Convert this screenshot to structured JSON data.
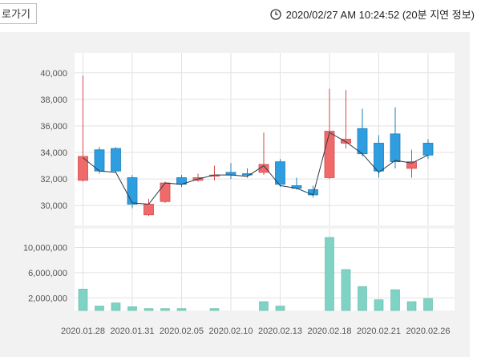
{
  "toolbar": {
    "back_label": "로가기"
  },
  "header": {
    "timestamp": "2020/02/27 AM 10:24:52 (20분 지연 정보)"
  },
  "colors": {
    "up": "#f06a6a",
    "down": "#2f9ee0",
    "volume": "#7fd3c4",
    "line": "#2b3a4a",
    "grid": "#e2e2e2"
  },
  "chart_data": [
    {
      "type": "candlestick",
      "title": "",
      "ylim": [
        28500,
        41500
      ],
      "yticks": [
        "30,000",
        "32,000",
        "34,000",
        "36,000",
        "38,000",
        "40,000"
      ],
      "ytick_values": [
        30000,
        32000,
        34000,
        36000,
        38000,
        40000
      ],
      "candles": [
        {
          "open": 31900,
          "close": 33700,
          "high": 39800,
          "low": 31800
        },
        {
          "open": 34200,
          "close": 32600,
          "high": 34400,
          "low": 32400
        },
        {
          "open": 34300,
          "close": 32600,
          "high": 34400,
          "low": 32500
        },
        {
          "open": 32100,
          "close": 30100,
          "high": 32300,
          "low": 29800
        },
        {
          "open": 29300,
          "close": 30100,
          "high": 30500,
          "low": 29200
        },
        {
          "open": 30300,
          "close": 31700,
          "high": 31800,
          "low": 30200
        },
        {
          "open": 32100,
          "close": 31600,
          "high": 32300,
          "low": 31400
        },
        {
          "open": 31900,
          "close": 32100,
          "high": 32400,
          "low": 31800
        },
        {
          "open": 32300,
          "close": 32300,
          "high": 33000,
          "low": 31900
        },
        {
          "open": 32500,
          "close": 32300,
          "high": 33200,
          "low": 32000
        },
        {
          "open": 32400,
          "close": 32300,
          "high": 32800,
          "low": 32100
        },
        {
          "open": 32500,
          "close": 33100,
          "high": 35500,
          "low": 32300
        },
        {
          "open": 33300,
          "close": 31600,
          "high": 33500,
          "low": 31400
        },
        {
          "open": 31500,
          "close": 31300,
          "high": 32100,
          "low": 31200
        },
        {
          "open": 31200,
          "close": 30800,
          "high": 31500,
          "low": 30600
        },
        {
          "open": 32100,
          "close": 35600,
          "high": 38800,
          "low": 32000
        },
        {
          "open": 34700,
          "close": 35000,
          "high": 38700,
          "low": 34300
        },
        {
          "open": 35800,
          "close": 33900,
          "high": 37300,
          "low": 33700
        },
        {
          "open": 34700,
          "close": 32600,
          "high": 35300,
          "low": 32100
        },
        {
          "open": 35400,
          "close": 33300,
          "high": 37400,
          "low": 32800
        },
        {
          "open": 32800,
          "close": 33300,
          "high": 34200,
          "low": 32100
        },
        {
          "open": 34700,
          "close": 33800,
          "high": 35000,
          "low": 33500
        }
      ],
      "line": [
        33600,
        32600,
        32500,
        30200,
        30100,
        31700,
        31600,
        32000,
        32300,
        32300,
        32200,
        33000,
        31500,
        31300,
        30800,
        35500,
        34800,
        33900,
        32500,
        33400,
        33200,
        33800
      ]
    },
    {
      "type": "bar",
      "title": "",
      "ylim": [
        0,
        13000000
      ],
      "yticks": [
        "2,000,000",
        "6,000,000",
        "10,000,000"
      ],
      "ytick_values": [
        2000000,
        6000000,
        10000000
      ],
      "values": [
        3400000,
        700000,
        1200000,
        600000,
        300000,
        300000,
        300000,
        0,
        300000,
        0,
        0,
        1400000,
        700000,
        0,
        0,
        11600000,
        6500000,
        3800000,
        1700000,
        3300000,
        1400000,
        1900000
      ]
    }
  ],
  "x_axis": {
    "labels": [
      "2020.01.28",
      "2020.01.31",
      "2020.02.05",
      "2020.02.10",
      "2020.02.13",
      "2020.02.18",
      "2020.02.21",
      "2020.02.26"
    ],
    "label_index": [
      0,
      3,
      6,
      9,
      12,
      15,
      18,
      21
    ]
  }
}
